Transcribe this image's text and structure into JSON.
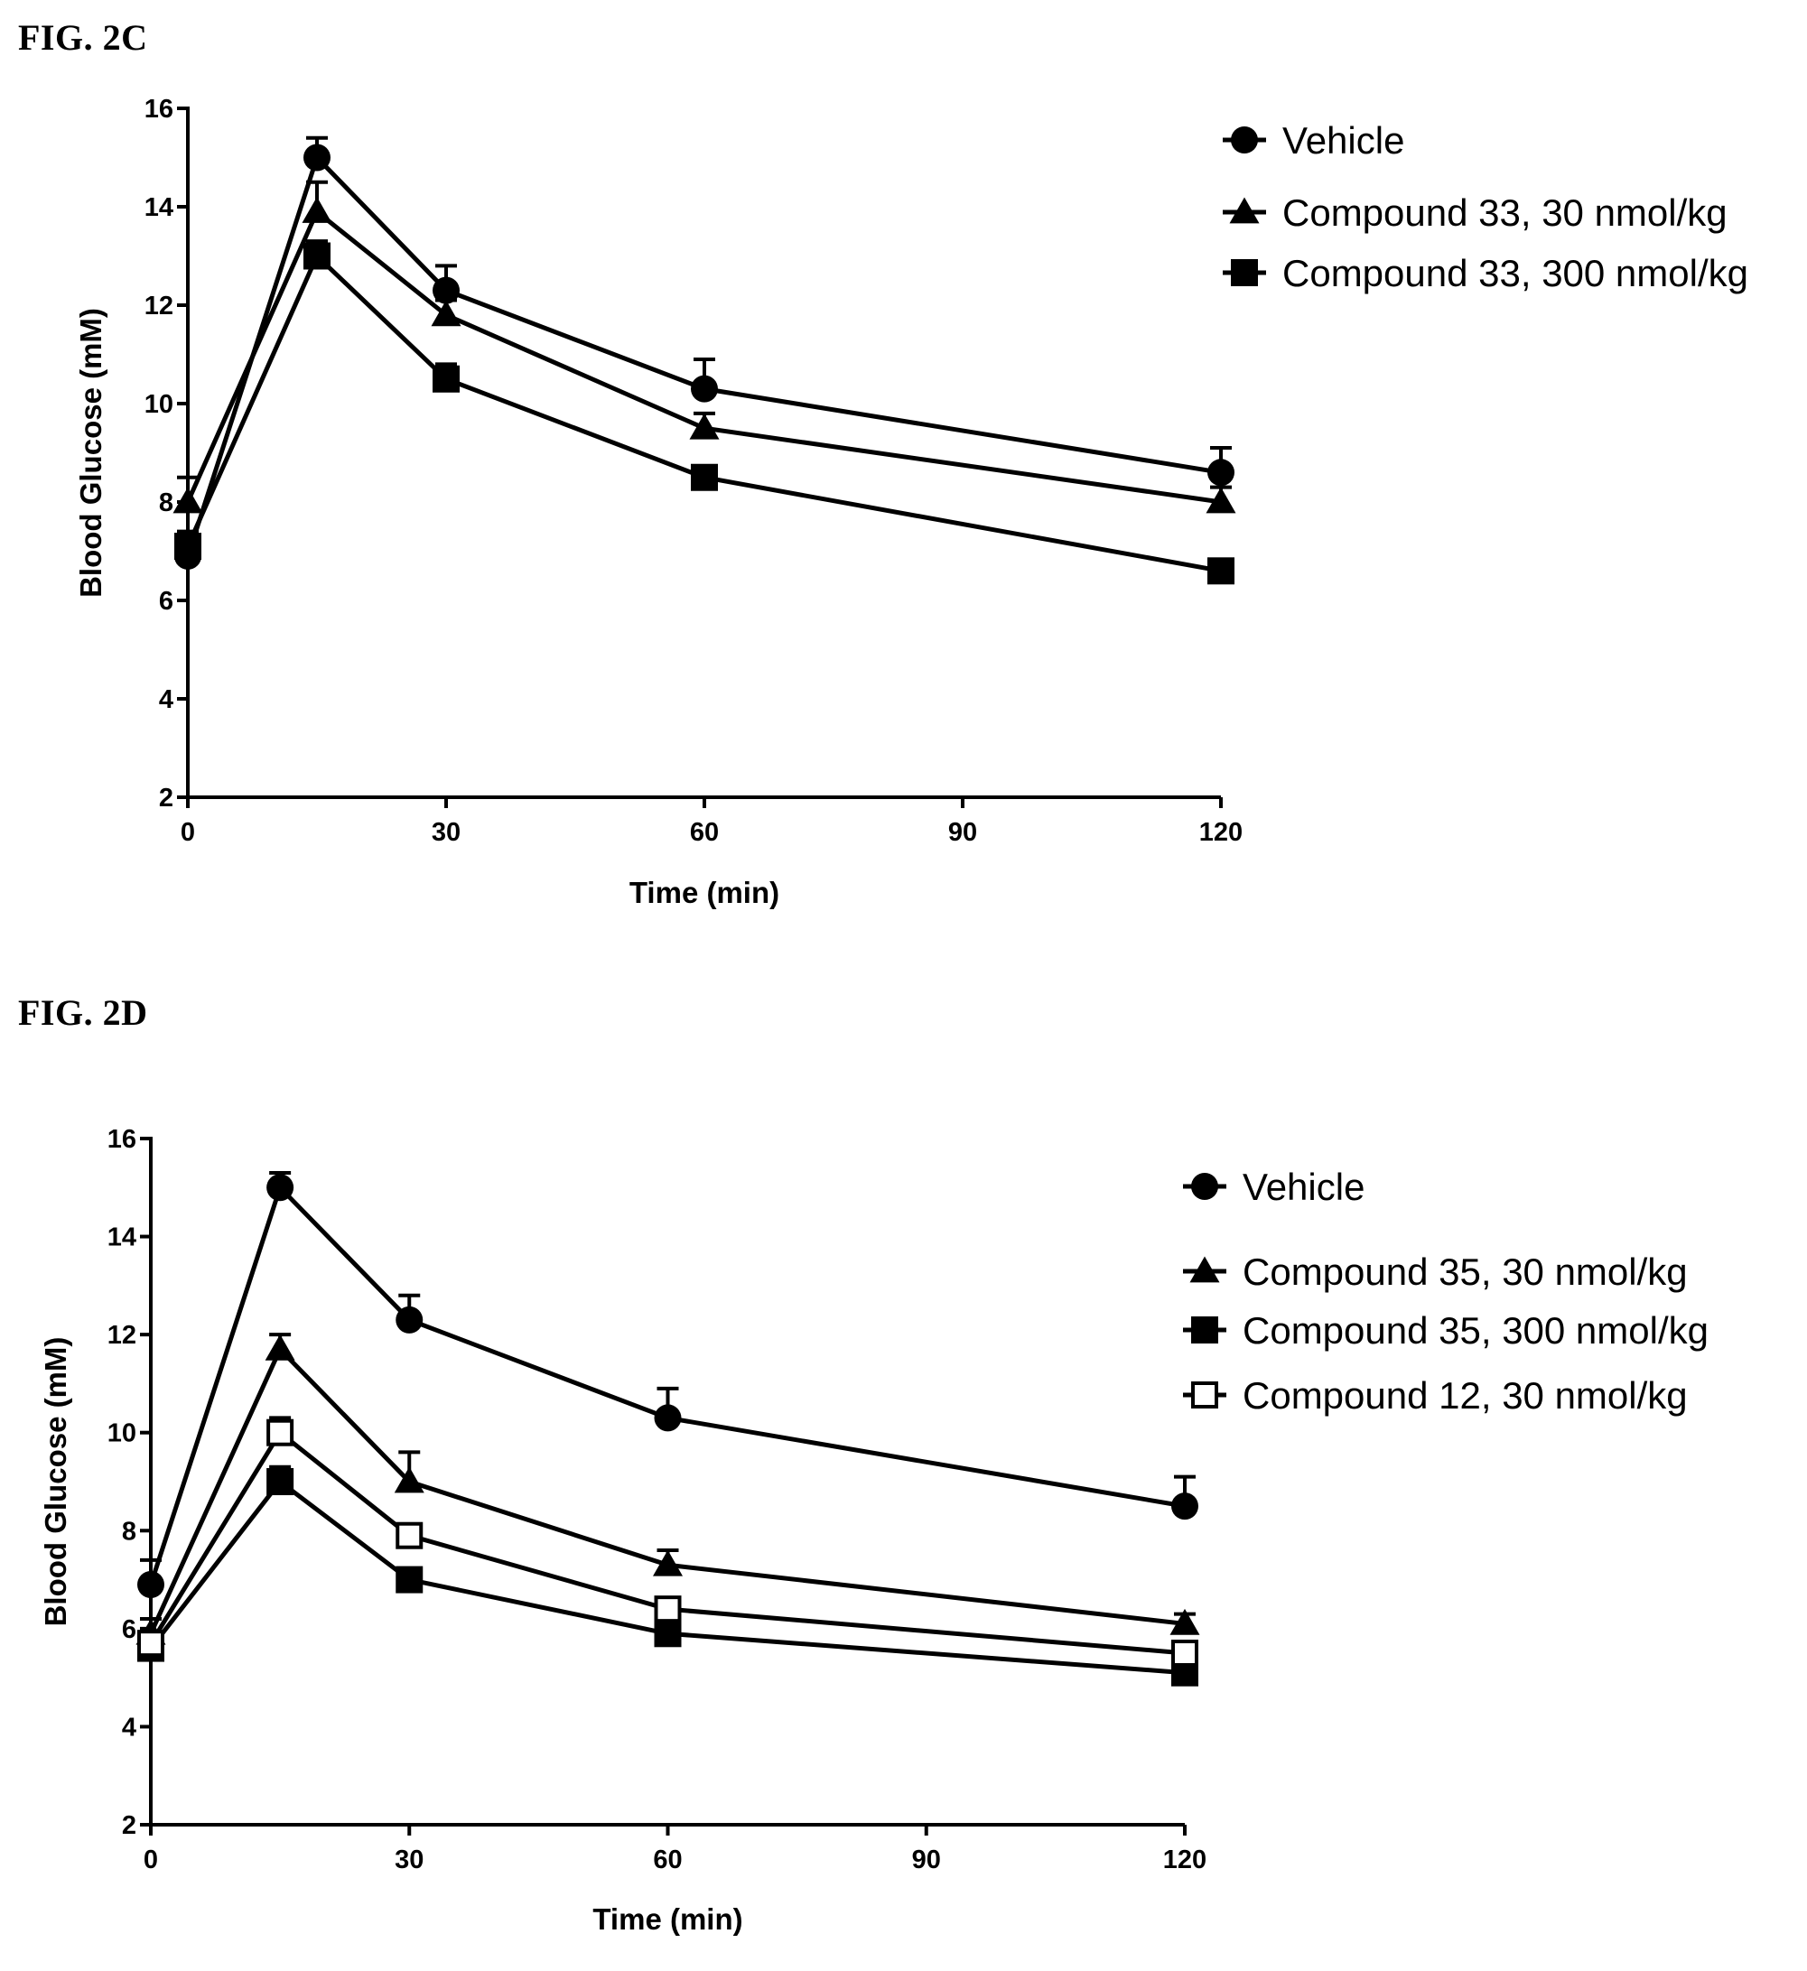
{
  "figures": [
    {
      "label": "FIG. 2C"
    },
    {
      "label": "FIG. 2D"
    }
  ],
  "chart_data": [
    {
      "type": "line",
      "title": "",
      "xlabel": "Time (min)",
      "ylabel": "Blood Glucose (mM)",
      "x": [
        0,
        15,
        30,
        60,
        120
      ],
      "xticks": [
        "0",
        "30",
        "60",
        "90",
        "120"
      ],
      "yticks": [
        "2",
        "4",
        "6",
        "8",
        "10",
        "12",
        "14",
        "16"
      ],
      "xlim": [
        0,
        120
      ],
      "ylim": [
        2,
        16
      ],
      "grid": false,
      "legend_position": "top-right",
      "series": [
        {
          "name": "Vehicle",
          "marker": "circle",
          "values": [
            6.9,
            15.0,
            12.3,
            10.3,
            8.6
          ],
          "error": [
            0.5,
            0.4,
            0.5,
            0.6,
            0.5
          ]
        },
        {
          "name": "Compound 33, 30 nmol/kg",
          "marker": "triangle",
          "values": [
            8.0,
            13.9,
            11.8,
            9.5,
            8.0
          ],
          "error": [
            0.5,
            0.6,
            0.3,
            0.3,
            0.3
          ]
        },
        {
          "name": "Compound 33, 300 nmol/kg",
          "marker": "square",
          "values": [
            7.1,
            13.0,
            10.5,
            8.5,
            6.6
          ],
          "error": [
            0.3,
            0.3,
            0.3,
            0.2,
            0.2
          ]
        }
      ]
    },
    {
      "type": "line",
      "title": "",
      "xlabel": "Time (min)",
      "ylabel": "Blood Glucose (mM)",
      "x": [
        0,
        15,
        30,
        60,
        120
      ],
      "xticks": [
        "0",
        "30",
        "60",
        "90",
        "120"
      ],
      "yticks": [
        "2",
        "4",
        "6",
        "8",
        "10",
        "12",
        "14",
        "16"
      ],
      "xlim": [
        0,
        120
      ],
      "ylim": [
        2,
        16
      ],
      "grid": false,
      "legend_position": "top-right",
      "series": [
        {
          "name": "Vehicle",
          "marker": "circle",
          "values": [
            6.9,
            15.0,
            12.3,
            10.3,
            8.5
          ],
          "error": [
            0.5,
            0.3,
            0.5,
            0.6,
            0.6
          ]
        },
        {
          "name": "Compound 35, 30 nmol/kg",
          "marker": "triangle",
          "values": [
            5.9,
            11.7,
            9.0,
            7.3,
            6.1
          ],
          "error": [
            0.3,
            0.3,
            0.6,
            0.3,
            0.2
          ]
        },
        {
          "name": "Compound 35, 300 nmol/kg",
          "marker": "square",
          "values": [
            5.6,
            9.0,
            7.0,
            5.9,
            5.1
          ],
          "error": [
            0.2,
            0.3,
            0.2,
            0.2,
            0.2
          ]
        },
        {
          "name": "Compound 12, 30 nmol/kg",
          "marker": "square-open",
          "values": [
            5.7,
            10.0,
            7.9,
            6.4,
            5.5
          ],
          "error": [
            0.2,
            0.3,
            0.2,
            0.2,
            0.2
          ]
        }
      ]
    }
  ]
}
